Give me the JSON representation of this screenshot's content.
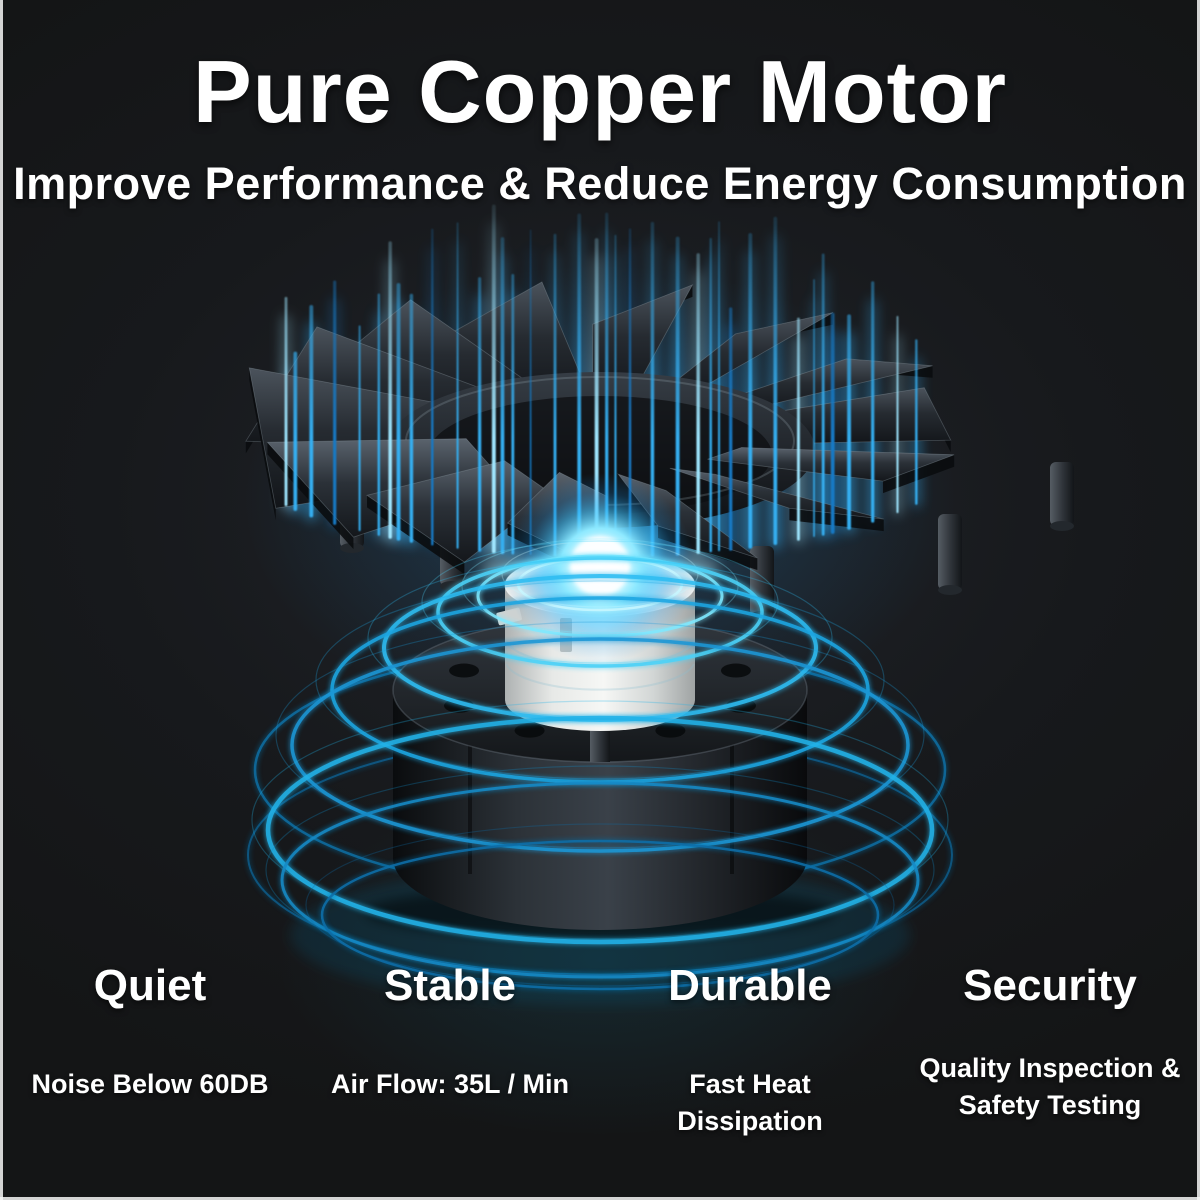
{
  "page": {
    "background_color": "#17181a",
    "accent_color": "#2fbdf2",
    "text_color": "#ffffff"
  },
  "header": {
    "title": "Pure Copper Motor",
    "subtitle": "Improve Performance & Reduce Energy Consumption"
  },
  "features": [
    {
      "heading": "Quiet",
      "detail": "Noise Below 60DB"
    },
    {
      "heading": "Stable",
      "detail": "Air Flow: 35L / Min"
    },
    {
      "heading": "Durable",
      "detail": "Fast Heat Dissipation"
    },
    {
      "heading": "Security",
      "detail": "Quality Inspection & Safety Testing"
    }
  ],
  "illustration": {
    "description": "3D render of a pure copper motor: dark fan impeller ring floating above a glowing white motor core on a black cylindrical housing, with blue air-flow streaks rising and cyan energy rings swirling around",
    "colors": {
      "streak_bright": "#9fe6ff",
      "streak_mid": "#34aef0",
      "streak_deep": "#1579c4",
      "ring_cyan": "#2fbdf2",
      "core_glow": "#eafdff",
      "housing_dark": "#101315",
      "motor_body_white": "#f2f4f2",
      "blade_dark": "#1a1e23"
    }
  }
}
